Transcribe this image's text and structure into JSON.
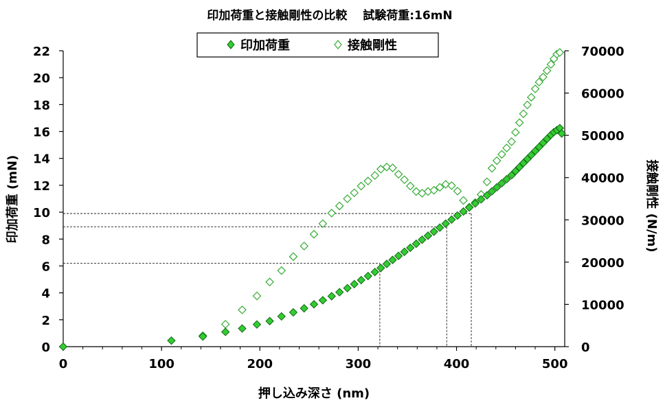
{
  "chart_data": {
    "type": "scatter",
    "title": "印加荷重と接触剛性の比較　 試験荷重:16mN",
    "xlabel": "押し込み深さ (nm)",
    "ylabel": "印加荷重 (mN)",
    "y2label": "接触剛性 (N/m)",
    "xlim": [
      0,
      510
    ],
    "ylim": [
      0,
      22
    ],
    "y2lim": [
      0,
      70000
    ],
    "x_ticks": [
      "0",
      "100",
      "200",
      "300",
      "400",
      "500"
    ],
    "y_ticks": [
      "0",
      "2",
      "4",
      "6",
      "8",
      "10",
      "12",
      "14",
      "16",
      "18",
      "20",
      "22"
    ],
    "y2_ticks": [
      "0",
      "10000",
      "20000",
      "30000",
      "40000",
      "50000",
      "60000",
      "70000"
    ],
    "legend": {
      "position": "top-center",
      "entries": [
        "印加荷重",
        "接触剛性"
      ]
    },
    "grid": false,
    "colors": {
      "load": "#33cc33",
      "stiffness": "#33aa33",
      "edge": "#116611"
    },
    "series": [
      {
        "name": "印加荷重",
        "axis": "left",
        "marker": "filled-diamond",
        "points": [
          [
            0,
            0
          ],
          [
            110,
            0.45
          ],
          [
            142,
            0.75
          ],
          [
            165,
            1.1
          ],
          [
            182,
            1.35
          ],
          [
            197,
            1.65
          ],
          [
            210,
            1.9
          ],
          [
            222,
            2.25
          ],
          [
            234,
            2.55
          ],
          [
            245,
            2.85
          ],
          [
            255,
            3.15
          ],
          [
            264,
            3.45
          ],
          [
            273,
            3.75
          ],
          [
            281,
            4.05
          ],
          [
            289,
            4.35
          ],
          [
            296,
            4.65
          ],
          [
            303,
            4.95
          ],
          [
            310,
            5.25
          ],
          [
            317,
            5.55
          ],
          [
            323,
            5.85
          ],
          [
            329,
            6.15
          ],
          [
            335,
            6.45
          ],
          [
            341,
            6.75
          ],
          [
            347,
            7.05
          ],
          [
            353,
            7.35
          ],
          [
            359,
            7.65
          ],
          [
            365,
            7.95
          ],
          [
            371,
            8.25
          ],
          [
            377,
            8.55
          ],
          [
            383,
            8.85
          ],
          [
            389,
            9.15
          ],
          [
            395,
            9.45
          ],
          [
            401,
            9.75
          ],
          [
            407,
            10.05
          ],
          [
            413,
            10.35
          ],
          [
            419,
            10.65
          ],
          [
            425,
            10.95
          ],
          [
            431,
            11.25
          ],
          [
            436,
            11.55
          ],
          [
            441,
            11.85
          ],
          [
            446,
            12.15
          ],
          [
            451,
            12.45
          ],
          [
            456,
            12.75
          ],
          [
            460,
            13.05
          ],
          [
            464,
            13.35
          ],
          [
            468,
            13.65
          ],
          [
            472,
            13.95
          ],
          [
            476,
            14.25
          ],
          [
            480,
            14.55
          ],
          [
            484,
            14.85
          ],
          [
            488,
            15.15
          ],
          [
            492,
            15.45
          ],
          [
            496,
            15.75
          ],
          [
            499,
            15.95
          ],
          [
            502,
            16.1
          ],
          [
            505,
            16.25
          ],
          [
            507,
            15.85
          ]
        ]
      },
      {
        "name": "接触剛性",
        "axis": "right",
        "marker": "open-diamond",
        "points": [
          [
            142,
            2600
          ],
          [
            165,
            5300
          ],
          [
            182,
            8700
          ],
          [
            197,
            12000
          ],
          [
            210,
            15300
          ],
          [
            222,
            18000
          ],
          [
            234,
            21300
          ],
          [
            245,
            23800
          ],
          [
            255,
            26600
          ],
          [
            264,
            29100
          ],
          [
            273,
            31600
          ],
          [
            281,
            33300
          ],
          [
            289,
            35000
          ],
          [
            296,
            36400
          ],
          [
            303,
            38000
          ],
          [
            310,
            39200
          ],
          [
            317,
            40500
          ],
          [
            323,
            42000
          ],
          [
            329,
            42500
          ],
          [
            335,
            42300
          ],
          [
            341,
            40800
          ],
          [
            347,
            39500
          ],
          [
            353,
            38000
          ],
          [
            359,
            36700
          ],
          [
            365,
            36300
          ],
          [
            371,
            36700
          ],
          [
            377,
            37000
          ],
          [
            383,
            37700
          ],
          [
            389,
            38400
          ],
          [
            395,
            38100
          ],
          [
            401,
            36800
          ],
          [
            407,
            34600
          ],
          [
            413,
            33000
          ],
          [
            419,
            34100
          ],
          [
            425,
            36000
          ],
          [
            431,
            39000
          ],
          [
            436,
            42200
          ],
          [
            441,
            44000
          ],
          [
            446,
            45500
          ],
          [
            451,
            47000
          ],
          [
            456,
            48500
          ],
          [
            460,
            50700
          ],
          [
            464,
            53000
          ],
          [
            468,
            55100
          ],
          [
            472,
            57200
          ],
          [
            476,
            59000
          ],
          [
            480,
            61000
          ],
          [
            484,
            62600
          ],
          [
            488,
            63800
          ],
          [
            492,
            65300
          ],
          [
            496,
            66800
          ],
          [
            499,
            68100
          ],
          [
            502,
            69200
          ],
          [
            505,
            69600
          ]
        ]
      }
    ],
    "reference_lines": [
      {
        "x": 322,
        "y": 6.2
      },
      {
        "x": 390,
        "y": 8.9
      },
      {
        "x": 415,
        "y": 9.9
      }
    ]
  }
}
